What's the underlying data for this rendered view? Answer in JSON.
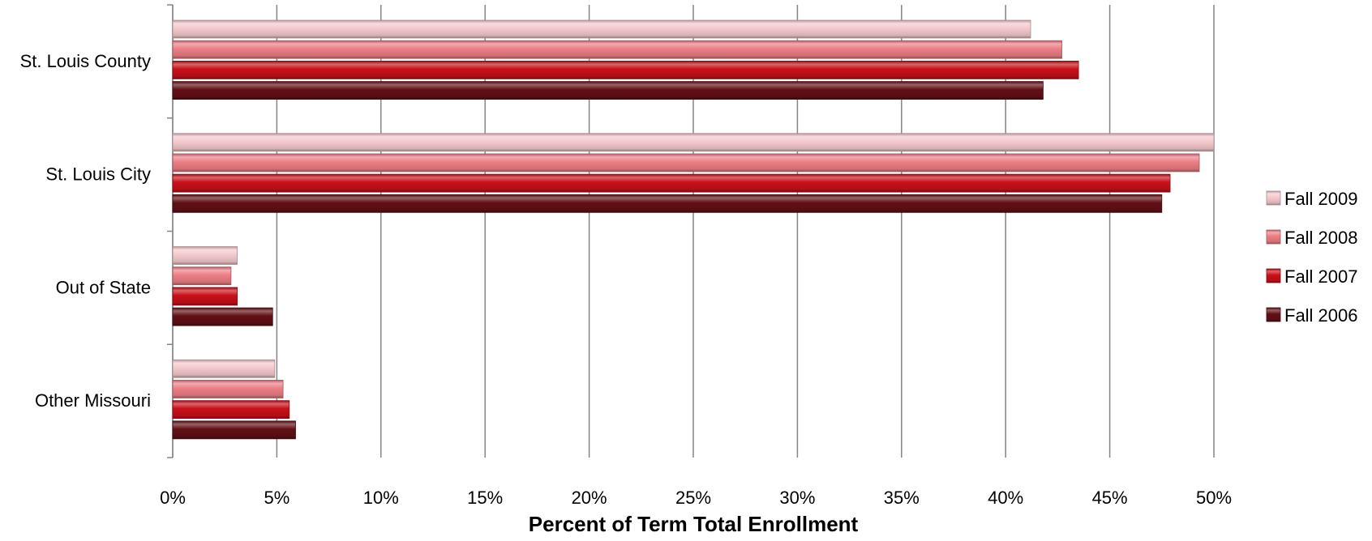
{
  "chart_data": {
    "type": "bar",
    "orientation": "horizontal",
    "categories": [
      "St. Louis County",
      "St. Louis City",
      "Out of State",
      "Other Missouri"
    ],
    "series": [
      {
        "name": "Fall 2009",
        "color": "#f4c9cd",
        "values": [
          41.2,
          50.0,
          3.1,
          4.9
        ]
      },
      {
        "name": "Fall 2008",
        "color": "#ec7e85",
        "values": [
          42.7,
          49.3,
          2.8,
          5.3
        ]
      },
      {
        "name": "Fall 2007",
        "color": "#c8101a",
        "values": [
          43.5,
          47.9,
          3.1,
          5.6
        ]
      },
      {
        "name": "Fall 2006",
        "color": "#621015",
        "values": [
          41.8,
          47.5,
          4.8,
          5.9
        ]
      }
    ],
    "x_ticks": [
      "0%",
      "5%",
      "10%",
      "15%",
      "20%",
      "25%",
      "30%",
      "35%",
      "40%",
      "45%",
      "50%"
    ],
    "xlabel": "Percent of Term Total Enrollment",
    "ylabel": "",
    "title": "",
    "xlim": [
      0,
      50
    ],
    "grid": true,
    "legend_position": "right"
  }
}
